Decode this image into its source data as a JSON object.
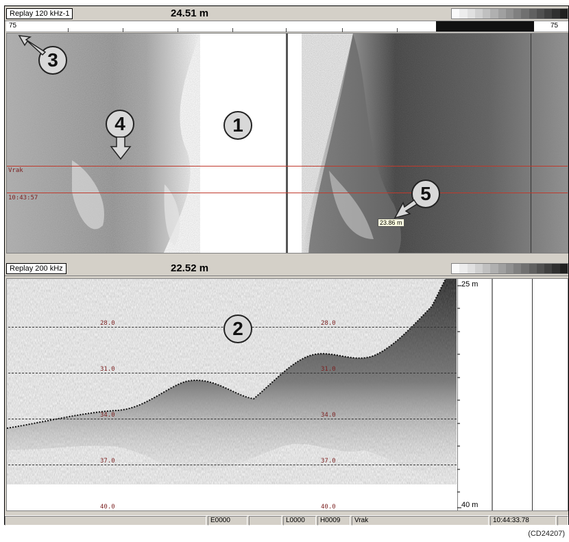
{
  "top_window": {
    "name": "Replay 120 kHz-1",
    "depth": "24.51 m",
    "range_left": "75",
    "range_right": "75",
    "marker_name": "Vrak",
    "marker_time": "10:43:57",
    "depth_tooltip": "23.86 m"
  },
  "bottom_window": {
    "name": "Replay 200 kHz",
    "depth": "22.52 m",
    "depth_labels_left": [
      "28.0",
      "31.0",
      "34.0",
      "37.0",
      "40.0"
    ],
    "depth_labels_mid": [
      "28.0",
      "31.0",
      "34.0",
      "37.0",
      "40.0"
    ],
    "scale_top": "25 m",
    "scale_bottom": "40 m"
  },
  "status_bar": {
    "cells": [
      "",
      "E0000",
      "",
      "L0000",
      "H0009",
      "Vrak",
      "10:44:33.78"
    ]
  },
  "callouts": [
    "1",
    "2",
    "3",
    "4",
    "5"
  ],
  "reference": "(CD24207)",
  "colors": {
    "marker_line": "#c0392b",
    "window_bg": "#d4d0c8"
  }
}
